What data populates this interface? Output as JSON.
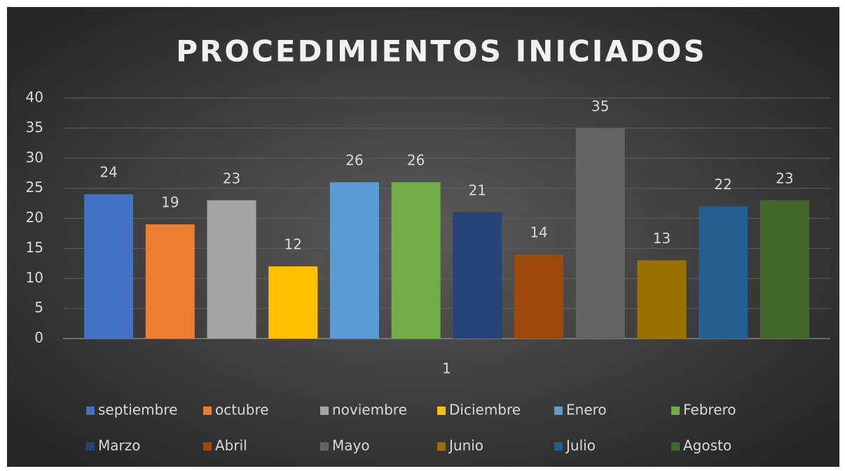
{
  "chart_data": {
    "type": "bar",
    "title": "PROCEDIMIENTOS INICIADOS",
    "categories": [
      "1"
    ],
    "series": [
      {
        "name": "septiembre",
        "color": "#4472c4",
        "values": [
          24
        ]
      },
      {
        "name": "octubre",
        "color": "#ed7d31",
        "values": [
          19
        ]
      },
      {
        "name": "noviembre",
        "color": "#a5a5a5",
        "values": [
          23
        ]
      },
      {
        "name": "Diciembre",
        "color": "#ffc000",
        "values": [
          12
        ]
      },
      {
        "name": "Enero",
        "color": "#5b9bd5",
        "values": [
          26
        ]
      },
      {
        "name": "Febrero",
        "color": "#70ad47",
        "values": [
          26
        ]
      },
      {
        "name": "Marzo",
        "color": "#264478",
        "values": [
          21
        ]
      },
      {
        "name": "Abril",
        "color": "#9e480e",
        "values": [
          14
        ]
      },
      {
        "name": "Mayo",
        "color": "#636363",
        "values": [
          35
        ]
      },
      {
        "name": "Junio",
        "color": "#997300",
        "values": [
          13
        ]
      },
      {
        "name": "Julio",
        "color": "#255e91",
        "values": [
          22
        ]
      },
      {
        "name": "Agosto",
        "color": "#43682b",
        "values": [
          23
        ]
      }
    ],
    "ylim": [
      0,
      40
    ],
    "yticks": [
      0,
      5,
      10,
      15,
      20,
      25,
      30,
      35,
      40
    ],
    "grid": true,
    "legend": "bottom"
  }
}
